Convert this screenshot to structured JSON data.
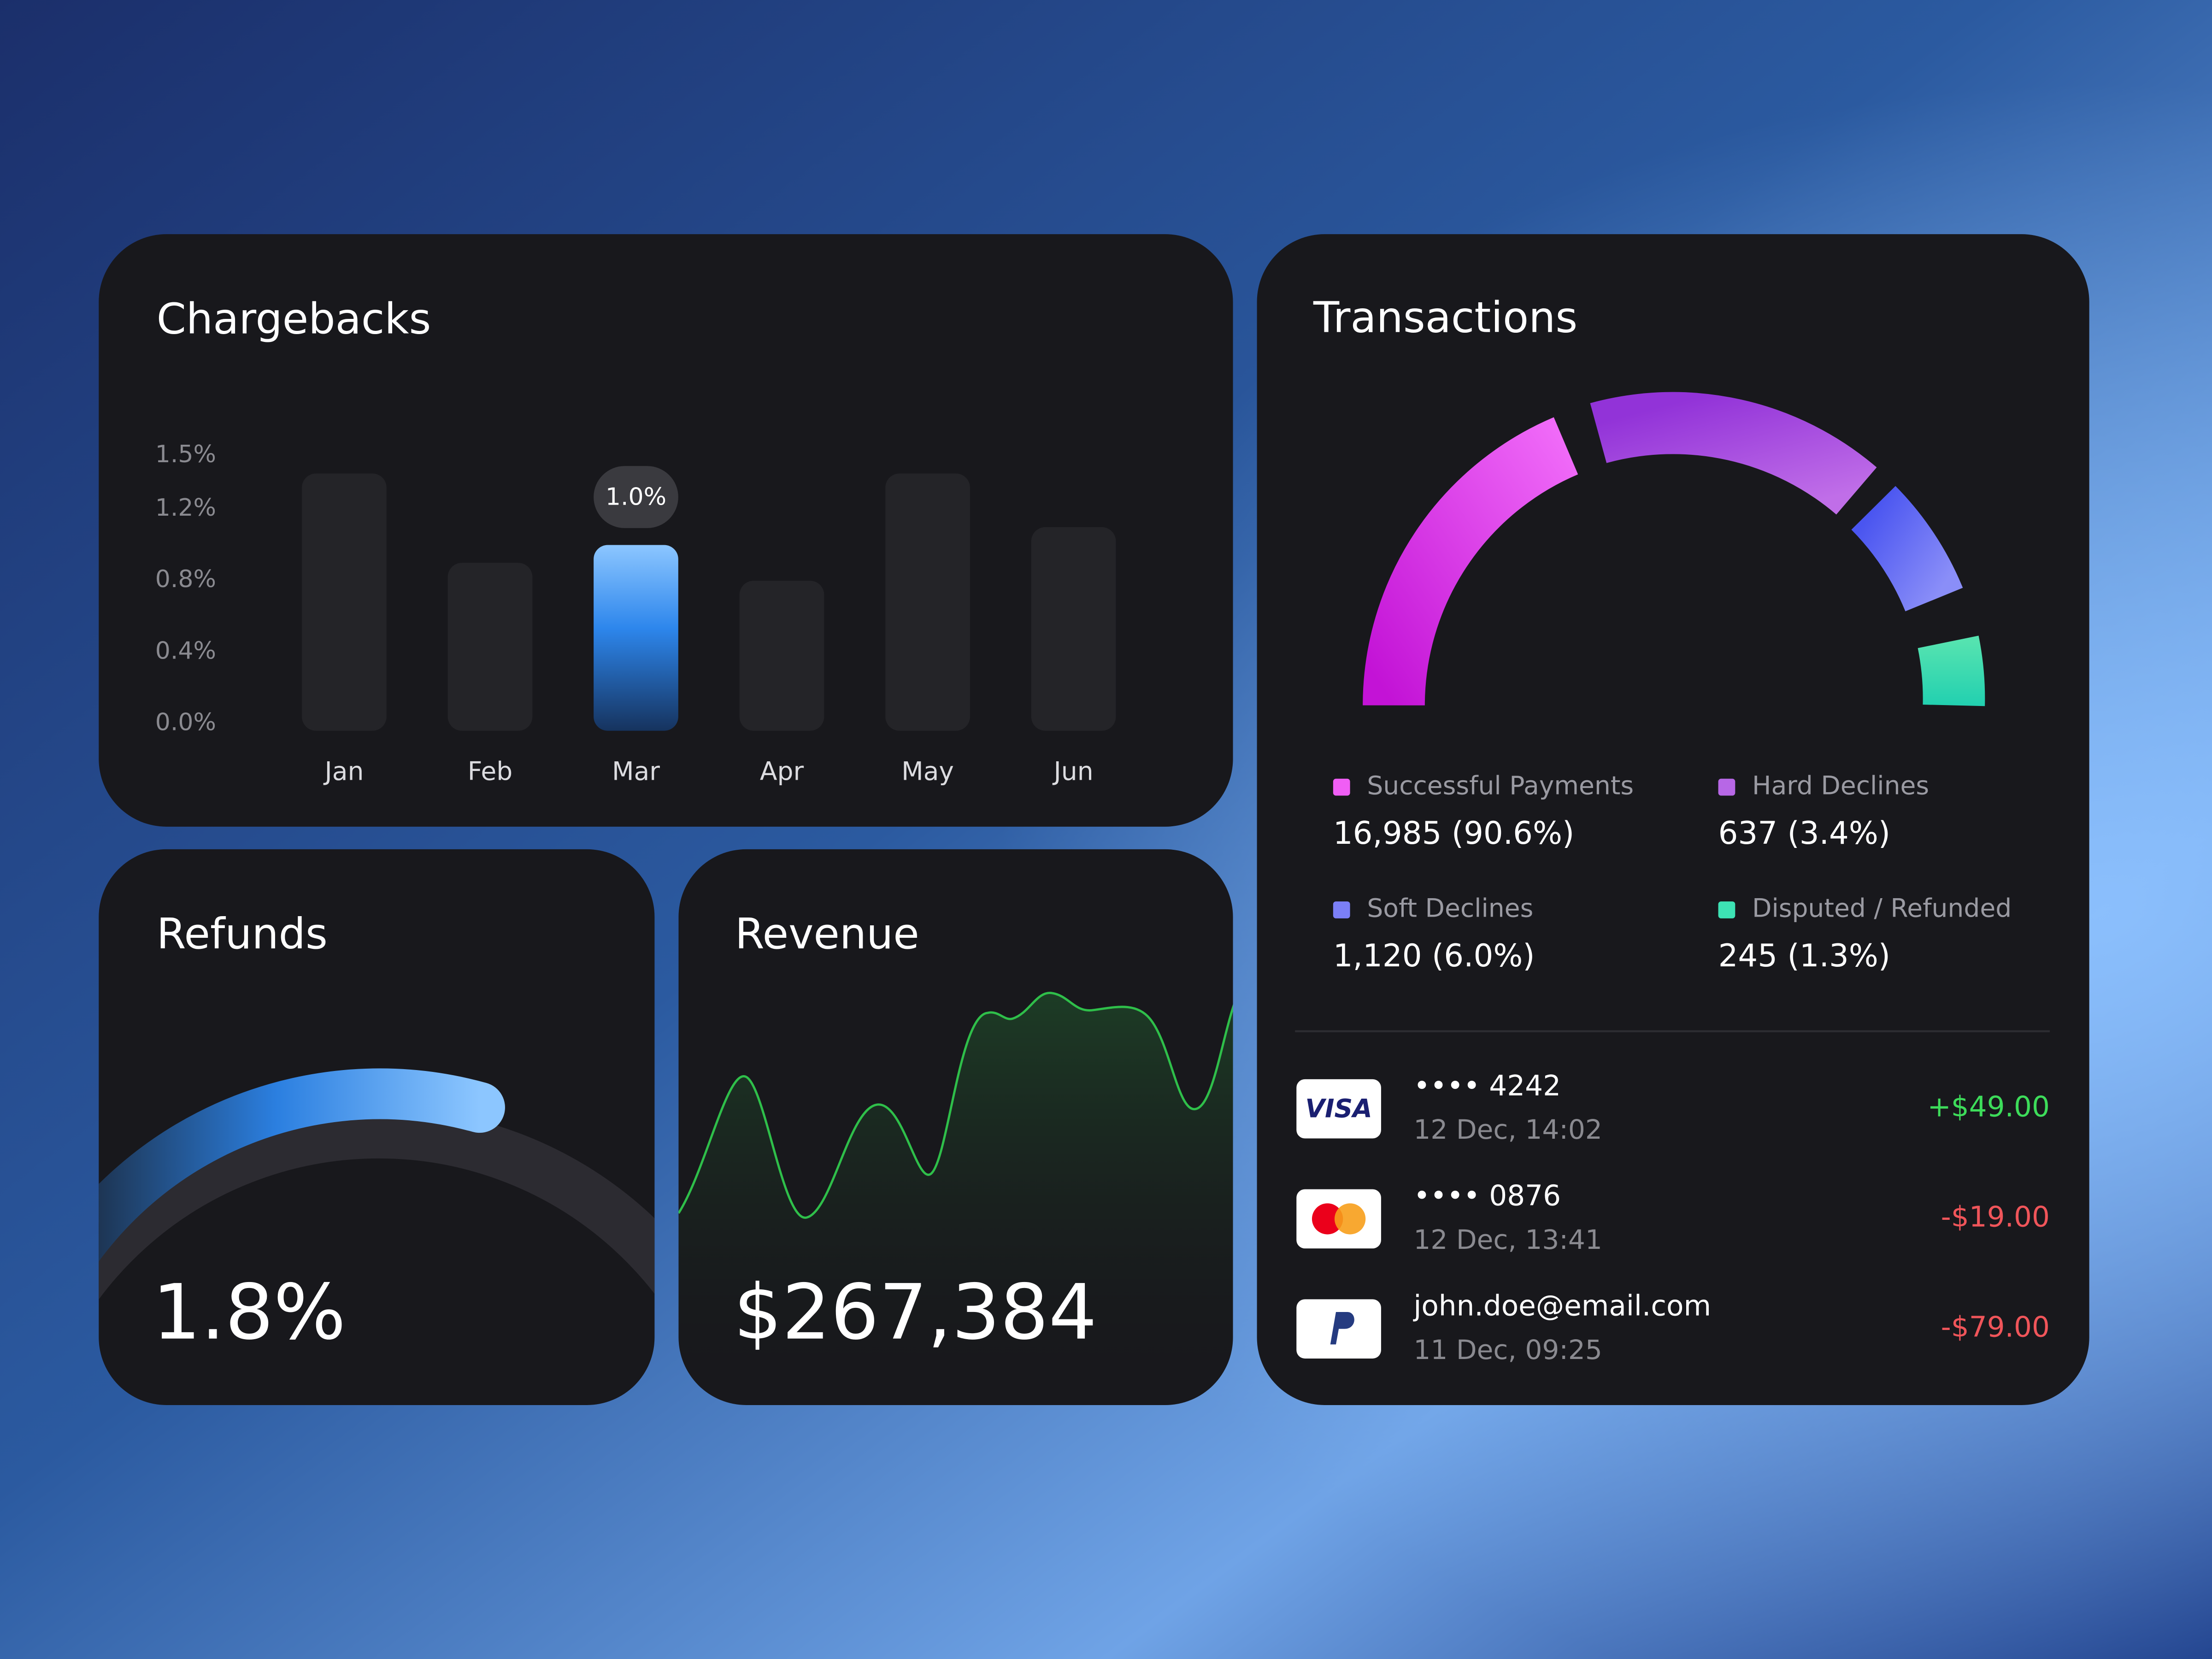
{
  "chargebacks": {
    "title": "Chargebacks",
    "chart_data": {
      "type": "bar",
      "categories": [
        "Jan",
        "Feb",
        "Mar",
        "Apr",
        "May",
        "Jun"
      ],
      "values": [
        1.4,
        0.9,
        1.0,
        0.8,
        1.4,
        1.1
      ],
      "value_labels": [
        null,
        null,
        "1.0%",
        null,
        null,
        null
      ],
      "color": "#242428",
      "ylim": [
        0,
        1.5
      ],
      "yticks": [
        {
          "value": 0,
          "label": "0.0%"
        },
        {
          "value": 0.4,
          "label": "0.4%"
        },
        {
          "value": 0.8,
          "label": "0.8%"
        },
        {
          "value": 1.2,
          "label": "1.2%"
        },
        {
          "value": 1.5,
          "label": "1.5%"
        }
      ]
    }
  },
  "refunds": {
    "title": "Refunds",
    "value": "1.8%"
  },
  "revenue": {
    "title": "Revenue",
    "value": "$267,384"
  },
  "transactions": {
    "title": "Transactions",
    "legend": [
      {
        "label": "Successful Payments",
        "value": "16,985 (90.6%)",
        "color": "#f05ef5"
      },
      {
        "label": "Hard Declines",
        "value": "637 (3.4%)",
        "color": "#b767e6"
      },
      {
        "label": "Soft Declines",
        "value": "1,120 (6.0%)",
        "color": "#7b7ff7"
      },
      {
        "label": "Disputed / Refunded",
        "value": "245 (1.3%)",
        "color": "#3de2b4"
      }
    ],
    "rows": [
      {
        "brand": "VISA",
        "account": "•••• 4242",
        "date": "12 Dec, 14:02",
        "amount": "+$49.00"
      },
      {
        "account": "•••• 0876",
        "date": "12 Dec, 13:41",
        "amount": "-$19.00"
      },
      {
        "account": "john.doe@email.com",
        "date": "11 Dec, 09:25",
        "amount": "-$79.00"
      }
    ]
  }
}
